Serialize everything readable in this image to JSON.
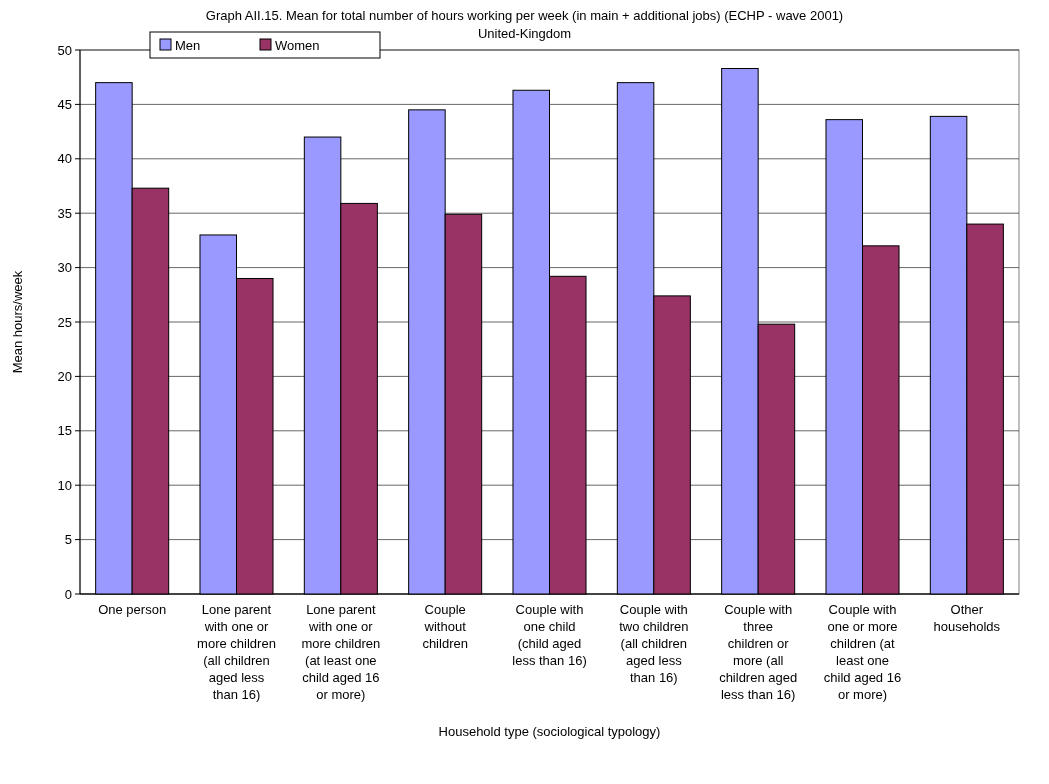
{
  "chart_data": {
    "type": "bar",
    "title": "Graph AII.15. Mean for total number of hours working per week (in main + additional jobs) (ECHP - wave 2001)",
    "subtitle": "United-Kingdom",
    "xlabel": "Household type (sociological typology)",
    "ylabel": "Mean hours/week",
    "categories": [
      "One person",
      "Lone parent with one or more children (all children aged less than 16)",
      "Lone parent with one or more children (at least one child aged 16 or more)",
      "Couple without children",
      "Couple with one child (child aged less than 16)",
      "Couple with two children (all children aged less than 16)",
      "Couple with three children or more (all children aged less than 16)",
      "Couple with one or more children (at least one child aged 16 or more)",
      "Other households"
    ],
    "series": [
      {
        "name": "Men",
        "color": "#9999ff",
        "values": [
          47,
          33,
          42,
          44.5,
          46.3,
          47,
          48.3,
          43.6,
          43.9
        ]
      },
      {
        "name": "Women",
        "color": "#993366",
        "values": [
          37.3,
          29,
          35.9,
          34.9,
          29.2,
          27.4,
          24.8,
          32,
          34
        ]
      }
    ],
    "ylim": [
      0,
      50
    ],
    "yticks": [
      0,
      5,
      10,
      15,
      20,
      25,
      30,
      35,
      40,
      45,
      50
    ],
    "grid": "y",
    "legend": "top left"
  }
}
